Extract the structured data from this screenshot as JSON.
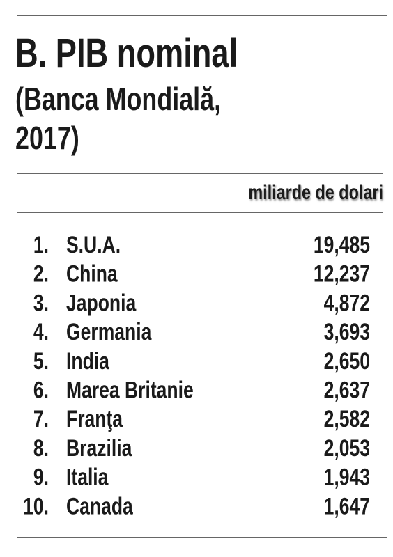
{
  "header": {
    "title": "B. PIB nominal",
    "subtitle_lines": [
      "(Banca Mondială,",
      "2017)"
    ]
  },
  "unit": "miliarde de dolari",
  "table": {
    "rows": [
      [
        "1.",
        "S.U.A.",
        "19,485"
      ],
      [
        "2.",
        "China",
        "12,237"
      ],
      [
        "3.",
        "Japonia",
        "4,872"
      ],
      [
        "4.",
        "Germania",
        "3,693"
      ],
      [
        "5.",
        "India",
        "2,650"
      ],
      [
        "6.",
        "Marea Britanie",
        "2,637"
      ],
      [
        "7.",
        "Franţa",
        "2,582"
      ],
      [
        "8.",
        "Brazilia",
        "2,053"
      ],
      [
        "9.",
        "Italia",
        "1,943"
      ],
      [
        "10.",
        "Canada",
        "1,647"
      ]
    ]
  }
}
